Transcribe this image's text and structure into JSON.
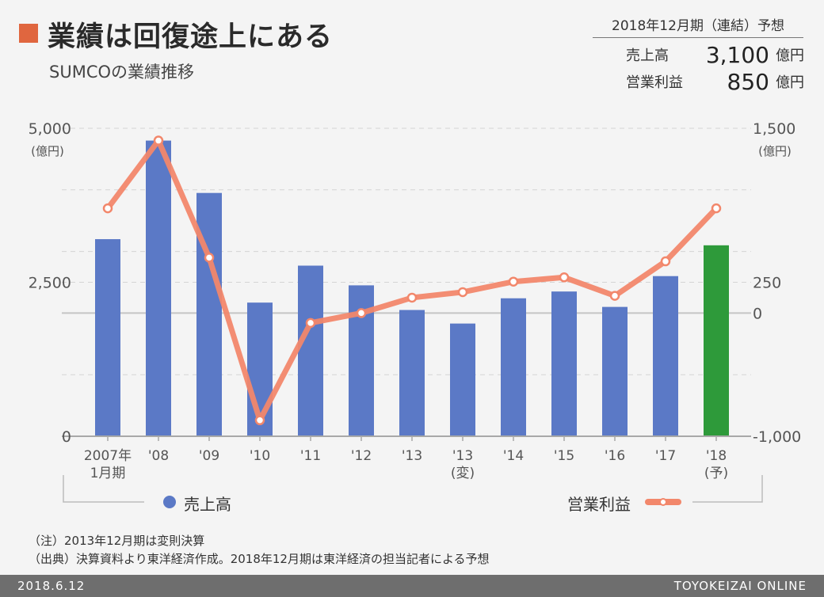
{
  "header": {
    "title": "業績は回復途上にある",
    "subtitle": "SUMCOの業績推移"
  },
  "forecast": {
    "heading": "2018年12月期（連結）予想",
    "rows": [
      {
        "label": "売上高",
        "value": "3,100",
        "unit": "億円"
      },
      {
        "label": "営業利益",
        "value": "850",
        "unit": "億円"
      }
    ]
  },
  "legend": {
    "sales": "売上高",
    "profit": "営業利益"
  },
  "notes": {
    "note1": "（注）2013年12月期は変則決算",
    "note2": "（出典）決算資料より東洋経済作成。2018年12月期は東洋経済の担当記者による予想"
  },
  "footer": {
    "date": "2018.6.12",
    "brand": "TOYOKEIZAI ONLINE"
  },
  "chart_data": {
    "type": "bar",
    "categories": [
      [
        "2007年",
        "1月期"
      ],
      [
        "'08"
      ],
      [
        "'09"
      ],
      [
        "'10"
      ],
      [
        "'11"
      ],
      [
        "'12"
      ],
      [
        "'13"
      ],
      [
        "'13",
        "(変)"
      ],
      [
        "'14"
      ],
      [
        "'15"
      ],
      [
        "'16"
      ],
      [
        "'17"
      ],
      [
        "'18",
        "(予)"
      ]
    ],
    "series": [
      {
        "name": "売上高",
        "axis": "left",
        "type": "bar",
        "color": "#5b79c6",
        "forecast_color": "#2e9a3a",
        "values": [
          3200,
          4800,
          3950,
          2170,
          2770,
          2450,
          2050,
          1830,
          2240,
          2350,
          2100,
          2600,
          3100
        ]
      },
      {
        "name": "営業利益",
        "axis": "right",
        "type": "line",
        "color": "#f2876b",
        "values": [
          850,
          1400,
          450,
          -870,
          -80,
          0,
          125,
          170,
          255,
          290,
          140,
          420,
          850
        ]
      }
    ],
    "left_axis": {
      "ticks": [
        {
          "value": 5000,
          "label": "5,000"
        },
        {
          "value": 2500,
          "label": "2,500"
        },
        {
          "value": 0,
          "label": "0"
        }
      ],
      "unit": "(億円)",
      "range": [
        0,
        5000
      ]
    },
    "right_axis": {
      "ticks": [
        {
          "value": 1500,
          "label": "1,500"
        },
        {
          "value": 250,
          "label": "250"
        },
        {
          "value": 0,
          "label": "0"
        },
        {
          "value": -1000,
          "label": "-1,000"
        }
      ],
      "unit": "(億円)",
      "range": [
        -1000,
        1500
      ]
    },
    "grid": true
  }
}
